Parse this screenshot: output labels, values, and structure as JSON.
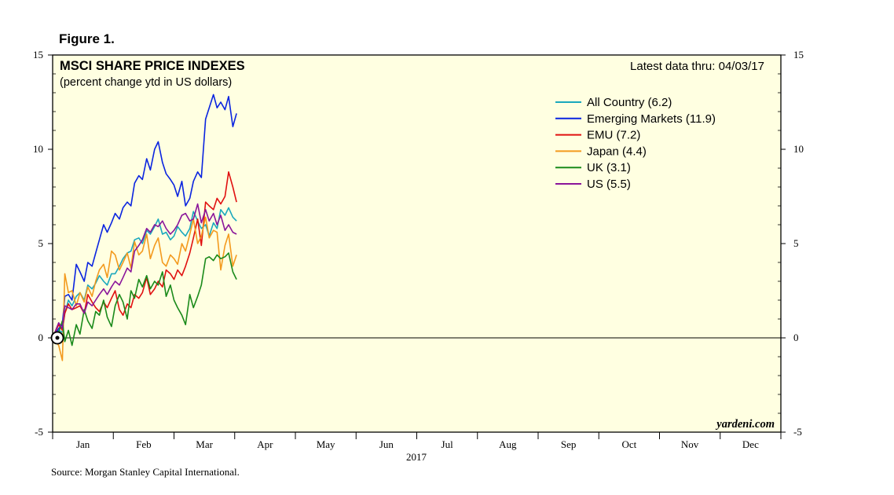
{
  "figure_label": "Figure 1.",
  "source_text": "Source: Morgan Stanley Capital International.",
  "credit": "yardeni.com",
  "colors": {
    "plot_background": "#ffffe1",
    "frame": "#000000"
  },
  "chart_data": {
    "type": "line",
    "title": "MSCI SHARE PRICE INDEXES",
    "subtitle": "(percent change ytd in US dollars)",
    "latest_note": "Latest data thru: 04/03/17",
    "xlabel": "2017",
    "ylabel": "",
    "ylim": [
      -5,
      15
    ],
    "yticks": [
      -5,
      0,
      5,
      10,
      15
    ],
    "yticks_right": [
      -5,
      0,
      5,
      10,
      15
    ],
    "x_range_months": [
      0,
      12
    ],
    "months": [
      "Jan",
      "Feb",
      "Mar",
      "Apr",
      "May",
      "Jun",
      "Jul",
      "Aug",
      "Sep",
      "Oct",
      "Nov",
      "Dec"
    ],
    "legend_position": "top-right",
    "grid": false,
    "series": [
      {
        "name": "All Country (6.2)",
        "color": "#1aa8bd",
        "x": [
          0.0,
          0.1,
          0.16,
          0.2,
          0.26,
          0.32,
          0.39,
          0.45,
          0.52,
          0.58,
          0.65,
          0.71,
          0.77,
          0.84,
          0.9,
          0.97,
          1.03,
          1.1,
          1.16,
          1.23,
          1.29,
          1.35,
          1.42,
          1.48,
          1.55,
          1.61,
          1.68,
          1.74,
          1.81,
          1.87,
          1.94,
          2.0,
          2.06,
          2.13,
          2.19,
          2.26,
          2.32,
          2.39,
          2.45,
          2.52,
          2.58,
          2.65,
          2.71,
          2.77,
          2.84,
          2.9,
          2.97,
          3.03
        ],
        "values": [
          0,
          0.4,
          0.3,
          1.3,
          2.0,
          1.7,
          2.2,
          2.4,
          2.0,
          2.8,
          2.6,
          2.9,
          3.3,
          3.0,
          2.8,
          3.4,
          3.4,
          3.8,
          4.2,
          4.5,
          4.6,
          5.2,
          5.3,
          5.0,
          5.7,
          5.5,
          5.9,
          6.3,
          5.5,
          5.6,
          5.2,
          5.4,
          5.9,
          5.6,
          5.4,
          5.8,
          6.7,
          6.2,
          5.8,
          6.0,
          5.4,
          6.1,
          5.8,
          6.8,
          6.5,
          6.9,
          6.4,
          6.2
        ]
      },
      {
        "name": "Emerging Markets (11.9)",
        "color": "#0a24e0",
        "x": [
          0.0,
          0.1,
          0.16,
          0.2,
          0.26,
          0.32,
          0.39,
          0.45,
          0.52,
          0.58,
          0.65,
          0.71,
          0.77,
          0.84,
          0.9,
          0.97,
          1.03,
          1.1,
          1.16,
          1.23,
          1.29,
          1.35,
          1.42,
          1.48,
          1.55,
          1.61,
          1.68,
          1.74,
          1.81,
          1.87,
          1.94,
          2.0,
          2.06,
          2.13,
          2.19,
          2.26,
          2.32,
          2.39,
          2.45,
          2.52,
          2.58,
          2.65,
          2.71,
          2.77,
          2.84,
          2.9,
          2.97,
          3.03
        ],
        "values": [
          0,
          0.5,
          0.7,
          2.2,
          2.3,
          2.0,
          3.9,
          3.5,
          3.0,
          4.0,
          3.8,
          4.5,
          5.2,
          6.0,
          5.6,
          6.1,
          6.6,
          6.3,
          6.9,
          7.2,
          7.0,
          8.2,
          8.6,
          8.4,
          9.5,
          8.9,
          10.0,
          10.4,
          9.3,
          8.7,
          8.4,
          8.1,
          7.5,
          8.3,
          7.0,
          7.4,
          8.3,
          8.8,
          8.5,
          11.6,
          12.2,
          12.9,
          12.2,
          12.5,
          12.1,
          12.8,
          11.2,
          11.9
        ]
      },
      {
        "name": "EMU (7.2)",
        "color": "#e01010",
        "x": [
          0.0,
          0.1,
          0.16,
          0.2,
          0.26,
          0.32,
          0.39,
          0.45,
          0.52,
          0.58,
          0.65,
          0.71,
          0.77,
          0.84,
          0.9,
          0.97,
          1.03,
          1.1,
          1.16,
          1.23,
          1.29,
          1.35,
          1.42,
          1.48,
          1.55,
          1.61,
          1.68,
          1.74,
          1.81,
          1.87,
          1.94,
          2.0,
          2.06,
          2.13,
          2.19,
          2.26,
          2.32,
          2.39,
          2.45,
          2.52,
          2.58,
          2.65,
          2.71,
          2.77,
          2.84,
          2.9,
          2.97,
          3.03
        ],
        "values": [
          0,
          0.7,
          0.4,
          1.3,
          1.8,
          1.5,
          1.6,
          1.7,
          1.3,
          2.3,
          1.9,
          1.6,
          1.4,
          1.9,
          1.6,
          2.1,
          2.5,
          1.5,
          1.2,
          1.8,
          1.6,
          2.3,
          2.1,
          2.4,
          3.2,
          2.3,
          2.6,
          3.0,
          2.7,
          3.6,
          3.4,
          3.1,
          3.6,
          3.3,
          3.8,
          4.5,
          5.3,
          6.3,
          4.9,
          7.2,
          7.0,
          6.8,
          7.4,
          7.1,
          7.5,
          8.8,
          8.0,
          7.2
        ]
      },
      {
        "name": "Japan (4.4)",
        "color": "#f39a1e",
        "x": [
          0.0,
          0.1,
          0.16,
          0.2,
          0.26,
          0.32,
          0.39,
          0.45,
          0.52,
          0.58,
          0.65,
          0.71,
          0.77,
          0.84,
          0.9,
          0.97,
          1.03,
          1.1,
          1.16,
          1.23,
          1.29,
          1.35,
          1.42,
          1.48,
          1.55,
          1.61,
          1.68,
          1.74,
          1.81,
          1.87,
          1.94,
          2.0,
          2.06,
          2.13,
          2.19,
          2.26,
          2.32,
          2.39,
          2.45,
          2.52,
          2.58,
          2.65,
          2.71,
          2.77,
          2.84,
          2.9,
          2.97,
          3.03
        ],
        "values": [
          0,
          -0.4,
          -1.2,
          3.4,
          2.4,
          2.5,
          1.7,
          2.4,
          1.9,
          2.7,
          2.2,
          3.0,
          3.6,
          3.9,
          3.2,
          4.6,
          4.4,
          3.6,
          4.0,
          4.5,
          3.7,
          5.1,
          4.4,
          4.6,
          5.5,
          4.2,
          4.9,
          5.3,
          4.0,
          3.8,
          4.4,
          4.2,
          3.9,
          5.0,
          4.6,
          5.5,
          6.3,
          5.0,
          5.4,
          6.4,
          5.3,
          5.7,
          5.6,
          3.6,
          4.9,
          5.5,
          3.8,
          4.4
        ]
      },
      {
        "name": "UK (3.1)",
        "color": "#1a8a1a",
        "x": [
          0.0,
          0.1,
          0.16,
          0.2,
          0.26,
          0.32,
          0.39,
          0.45,
          0.52,
          0.58,
          0.65,
          0.71,
          0.77,
          0.84,
          0.9,
          0.97,
          1.03,
          1.1,
          1.16,
          1.23,
          1.29,
          1.35,
          1.42,
          1.48,
          1.55,
          1.61,
          1.68,
          1.74,
          1.81,
          1.87,
          1.94,
          2.0,
          2.06,
          2.13,
          2.19,
          2.26,
          2.32,
          2.39,
          2.45,
          2.52,
          2.58,
          2.65,
          2.71,
          2.77,
          2.84,
          2.9,
          2.97,
          3.03
        ],
        "values": [
          0,
          0.3,
          0.9,
          -0.2,
          0.4,
          -0.4,
          0.7,
          0.2,
          1.5,
          0.9,
          0.5,
          1.4,
          1.2,
          2.0,
          1.1,
          0.6,
          1.7,
          2.3,
          1.9,
          1.0,
          2.5,
          2.1,
          3.1,
          2.7,
          3.3,
          2.6,
          3.0,
          2.8,
          3.5,
          2.2,
          2.8,
          2.0,
          1.6,
          1.2,
          0.7,
          2.3,
          1.6,
          2.2,
          2.8,
          4.2,
          4.3,
          4.1,
          4.4,
          4.2,
          4.3,
          4.5,
          3.5,
          3.1
        ]
      },
      {
        "name": "US (5.5)",
        "color": "#8a159a",
        "x": [
          0.0,
          0.1,
          0.16,
          0.2,
          0.26,
          0.32,
          0.39,
          0.45,
          0.52,
          0.58,
          0.65,
          0.71,
          0.77,
          0.84,
          0.9,
          0.97,
          1.03,
          1.1,
          1.16,
          1.23,
          1.29,
          1.35,
          1.42,
          1.48,
          1.55,
          1.61,
          1.68,
          1.74,
          1.81,
          1.87,
          1.94,
          2.0,
          2.06,
          2.13,
          2.19,
          2.26,
          2.32,
          2.39,
          2.45,
          2.52,
          2.58,
          2.65,
          2.71,
          2.77,
          2.84,
          2.9,
          2.97,
          3.03
        ],
        "values": [
          0,
          0.8,
          0.5,
          1.7,
          1.6,
          1.5,
          1.8,
          1.8,
          1.3,
          1.9,
          1.7,
          2.0,
          2.3,
          2.6,
          2.3,
          2.7,
          3.0,
          2.8,
          3.2,
          3.7,
          3.5,
          4.6,
          4.9,
          5.2,
          5.8,
          5.6,
          6.0,
          5.9,
          6.2,
          5.8,
          5.5,
          5.7,
          6.0,
          6.5,
          6.6,
          6.2,
          6.3,
          7.1,
          6.1,
          6.8,
          6.2,
          6.6,
          6.0,
          6.5,
          5.7,
          6.0,
          5.6,
          5.5
        ]
      }
    ]
  }
}
